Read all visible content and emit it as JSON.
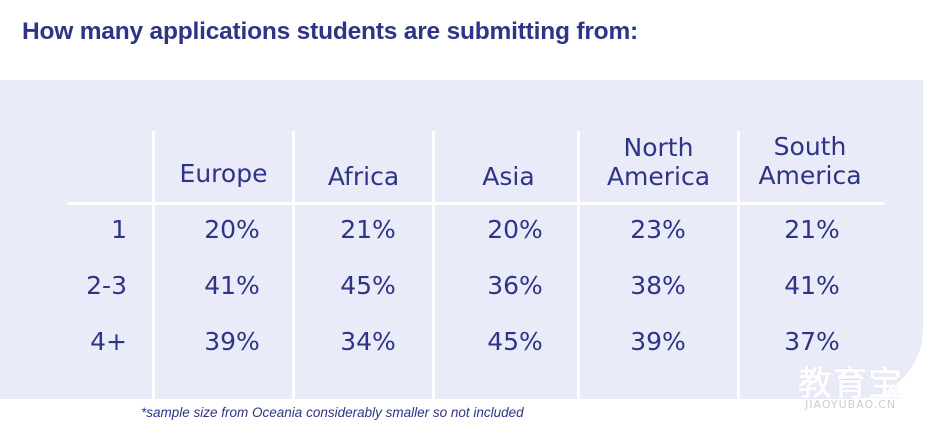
{
  "title": "How many applications students are submitting from:",
  "table": {
    "columns": [
      "Europe",
      "Africa",
      "Asia",
      "North America",
      "South America"
    ],
    "column_lines": [
      [
        "Europe"
      ],
      [
        "Africa"
      ],
      [
        "Asia"
      ],
      [
        "North",
        "America"
      ],
      [
        "South",
        "America"
      ]
    ],
    "rows": [
      {
        "label": "1",
        "values": [
          "20%",
          "21%",
          "20%",
          "23%",
          "21%"
        ]
      },
      {
        "label": "2-3",
        "values": [
          "41%",
          "45%",
          "36%",
          "38%",
          "41%"
        ]
      },
      {
        "label": "4+",
        "values": [
          "39%",
          "34%",
          "45%",
          "39%",
          "37%"
        ]
      }
    ]
  },
  "footnote": "*sample size from Oceania considerably smaller so not included",
  "watermark": {
    "chinese": "教育宝",
    "url": "JIAOYUBAO.CN"
  },
  "colors": {
    "text": "#2e3486",
    "panel": "#e9ebf8"
  }
}
